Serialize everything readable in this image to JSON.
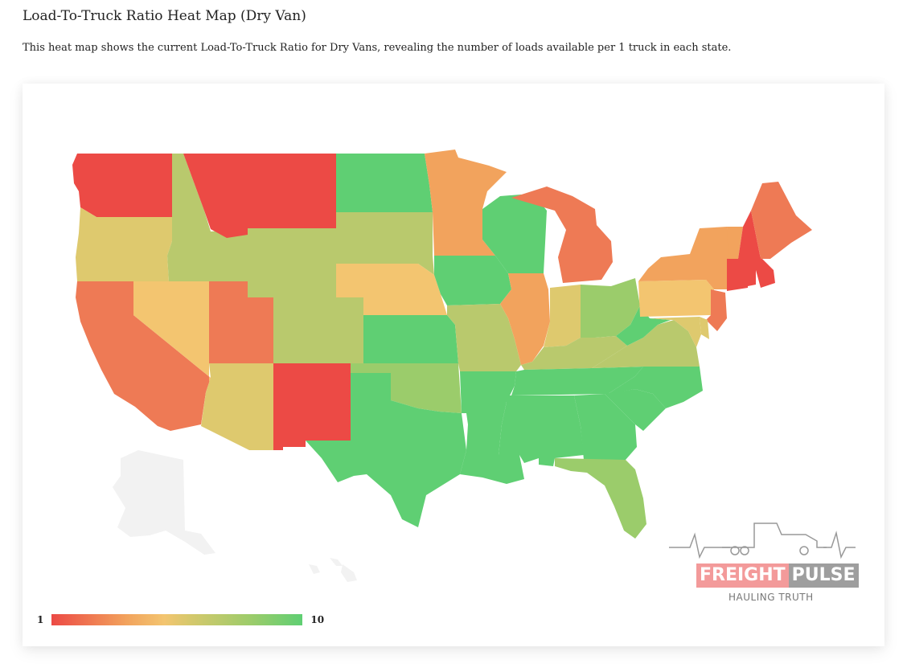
{
  "page": {
    "title": "Load-To-Truck Ratio Heat Map (Dry Van)",
    "description": "This heat map shows the current Load-To-Truck Ratio for Dry Vans, revealing the number of loads available per 1 truck in each state."
  },
  "legend": {
    "min_label": "1",
    "max_label": "10",
    "colors": [
      "#ec4a45",
      "#f2a35d",
      "#f3c570",
      "#d6c86c",
      "#9bcc6b",
      "#5fcf73"
    ]
  },
  "logo": {
    "name_part1": "FREIGHT",
    "name_part2": "PULSE",
    "tagline": "HAULING TRUTH"
  },
  "colors": {
    "red": "#ec4a45",
    "orange_red": "#ee7a55",
    "orange": "#f2a35d",
    "light_orange": "#f3c570",
    "yellow": "#dec96e",
    "yellow_green": "#b9c96d",
    "light_green": "#9bcc6b",
    "green": "#5fcf73",
    "no_data": "#f2f2f2"
  },
  "states": [
    {
      "name": "WA",
      "color": "red"
    },
    {
      "name": "OR",
      "color": "yellow"
    },
    {
      "name": "CA",
      "color": "orange_red"
    },
    {
      "name": "ID",
      "color": "yellow_green"
    },
    {
      "name": "NV",
      "color": "light_orange"
    },
    {
      "name": "MT",
      "color": "red"
    },
    {
      "name": "WY",
      "color": "yellow_green"
    },
    {
      "name": "UT",
      "color": "orange_red"
    },
    {
      "name": "AZ",
      "color": "yellow"
    },
    {
      "name": "CO",
      "color": "yellow_green"
    },
    {
      "name": "NM",
      "color": "red"
    },
    {
      "name": "ND",
      "color": "green"
    },
    {
      "name": "SD",
      "color": "yellow_green"
    },
    {
      "name": "NE",
      "color": "light_orange"
    },
    {
      "name": "KS",
      "color": "green"
    },
    {
      "name": "OK",
      "color": "light_green"
    },
    {
      "name": "TX",
      "color": "green"
    },
    {
      "name": "MN",
      "color": "orange"
    },
    {
      "name": "IA",
      "color": "green"
    },
    {
      "name": "MO",
      "color": "yellow_green"
    },
    {
      "name": "AR",
      "color": "green"
    },
    {
      "name": "LA",
      "color": "green"
    },
    {
      "name": "WI",
      "color": "green"
    },
    {
      "name": "IL",
      "color": "orange"
    },
    {
      "name": "MI",
      "color": "orange_red"
    },
    {
      "name": "IN",
      "color": "yellow"
    },
    {
      "name": "OH",
      "color": "light_green"
    },
    {
      "name": "KY",
      "color": "yellow_green"
    },
    {
      "name": "TN",
      "color": "green"
    },
    {
      "name": "MS",
      "color": "green"
    },
    {
      "name": "AL",
      "color": "green"
    },
    {
      "name": "GA",
      "color": "green"
    },
    {
      "name": "FL",
      "color": "light_green"
    },
    {
      "name": "SC",
      "color": "green"
    },
    {
      "name": "NC",
      "color": "green"
    },
    {
      "name": "VA",
      "color": "yellow_green"
    },
    {
      "name": "WV",
      "color": "green"
    },
    {
      "name": "PA",
      "color": "light_orange"
    },
    {
      "name": "NY",
      "color": "orange"
    },
    {
      "name": "NJ",
      "color": "orange_red"
    },
    {
      "name": "MD",
      "color": "yellow"
    },
    {
      "name": "DE",
      "color": "yellow"
    },
    {
      "name": "CT",
      "color": "red"
    },
    {
      "name": "RI",
      "color": "red"
    },
    {
      "name": "MA",
      "color": "red"
    },
    {
      "name": "VT",
      "color": "orange"
    },
    {
      "name": "NH",
      "color": "red"
    },
    {
      "name": "ME",
      "color": "orange_red"
    },
    {
      "name": "AK",
      "color": "no_data"
    },
    {
      "name": "HI",
      "color": "no_data"
    }
  ]
}
